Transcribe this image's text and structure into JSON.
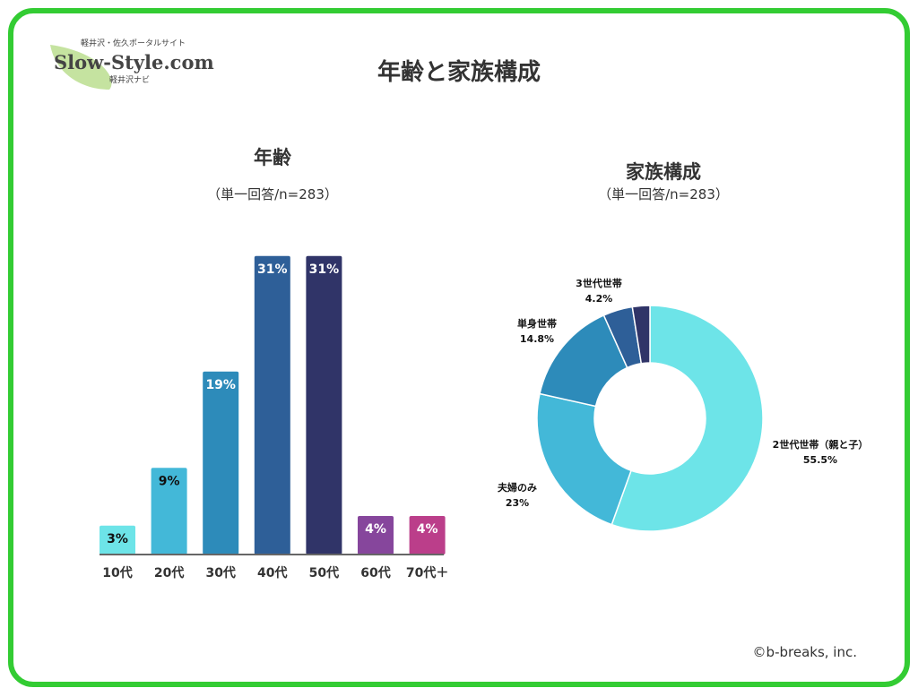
{
  "header": {
    "title": "年齢と家族構成"
  },
  "logo": {
    "top": "軽井沢・佐久ポータルサイト",
    "main": "Slow-Style.com",
    "bottom": "軽井沢ナビ"
  },
  "footer": {
    "copyright": "©b-breaks, inc."
  },
  "chart_data": [
    {
      "type": "bar",
      "title": "年齢",
      "subtitle": "（単一回答/n=283）",
      "categories": [
        "10代",
        "20代",
        "30代",
        "40代",
        "50代",
        "60代",
        "70代＋"
      ],
      "values": [
        3,
        9,
        19,
        31,
        31,
        4,
        4
      ],
      "labels": [
        "3%",
        "9%",
        "19%",
        "31%",
        "31%",
        "4%",
        "4%"
      ],
      "colors": [
        "#6de4e8",
        "#43b8d8",
        "#2d8bba",
        "#2e5f98",
        "#303468",
        "#86469c",
        "#bb3e8a"
      ],
      "label_colors": [
        "#111",
        "#111",
        "#fff",
        "#fff",
        "#fff",
        "#fff",
        "#fff"
      ]
    },
    {
      "type": "pie",
      "title": "家族構成",
      "subtitle": "（単一回答/n=283）",
      "categories": [
        "2世代世帯（親と子）",
        "夫婦のみ",
        "単身世帯",
        "3世代世帯",
        ""
      ],
      "values": [
        55.5,
        23,
        14.8,
        4.2,
        2.5
      ],
      "labels": [
        "55.5%",
        "23%",
        "14.8%",
        "4.2%",
        ""
      ],
      "colors": [
        "#6de4e8",
        "#43b8d8",
        "#2d8bba",
        "#2e5f98",
        "#303468"
      ]
    }
  ]
}
